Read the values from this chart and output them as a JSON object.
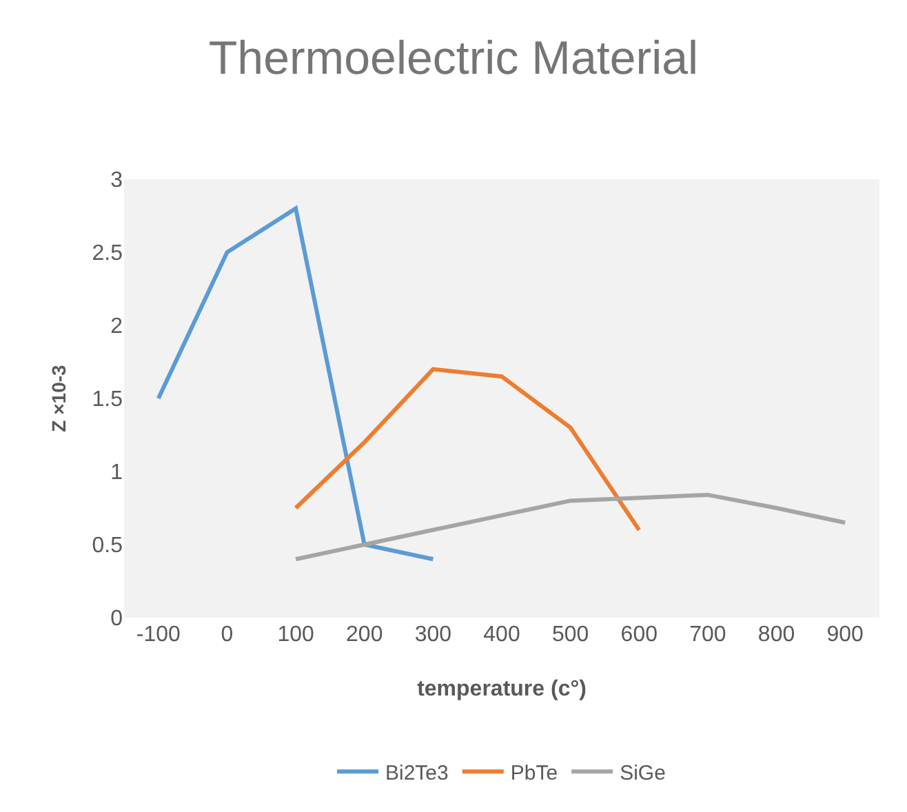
{
  "chart_data": {
    "type": "line",
    "title": "Thermoelectric Material",
    "xlabel": "temperature (c°)",
    "ylabel": "Z ×10-3",
    "categories": [
      "-100",
      "0",
      "100",
      "200",
      "300",
      "400",
      "500",
      "600",
      "700",
      "800",
      "900"
    ],
    "series": [
      {
        "name": "Bi2Te3",
        "color": "#5b9bd5",
        "values": [
          1.5,
          2.5,
          2.8,
          0.5,
          0.4,
          null,
          null,
          null,
          null,
          null,
          null
        ]
      },
      {
        "name": "PbTe",
        "color": "#ed7d31",
        "values": [
          null,
          null,
          0.75,
          1.2,
          1.7,
          1.65,
          1.3,
          0.6,
          null,
          null,
          null
        ]
      },
      {
        "name": "SiGe",
        "color": "#a5a5a5",
        "values": [
          null,
          null,
          0.4,
          0.5,
          0.6,
          0.7,
          0.8,
          0.82,
          0.84,
          0.75,
          0.65
        ]
      }
    ],
    "ylim": [
      0,
      3
    ],
    "yticks": [
      0,
      0.5,
      1,
      1.5,
      2,
      2.5,
      3
    ],
    "grid": false,
    "legend": "bottom",
    "marker": "none",
    "line_style": "solid"
  }
}
